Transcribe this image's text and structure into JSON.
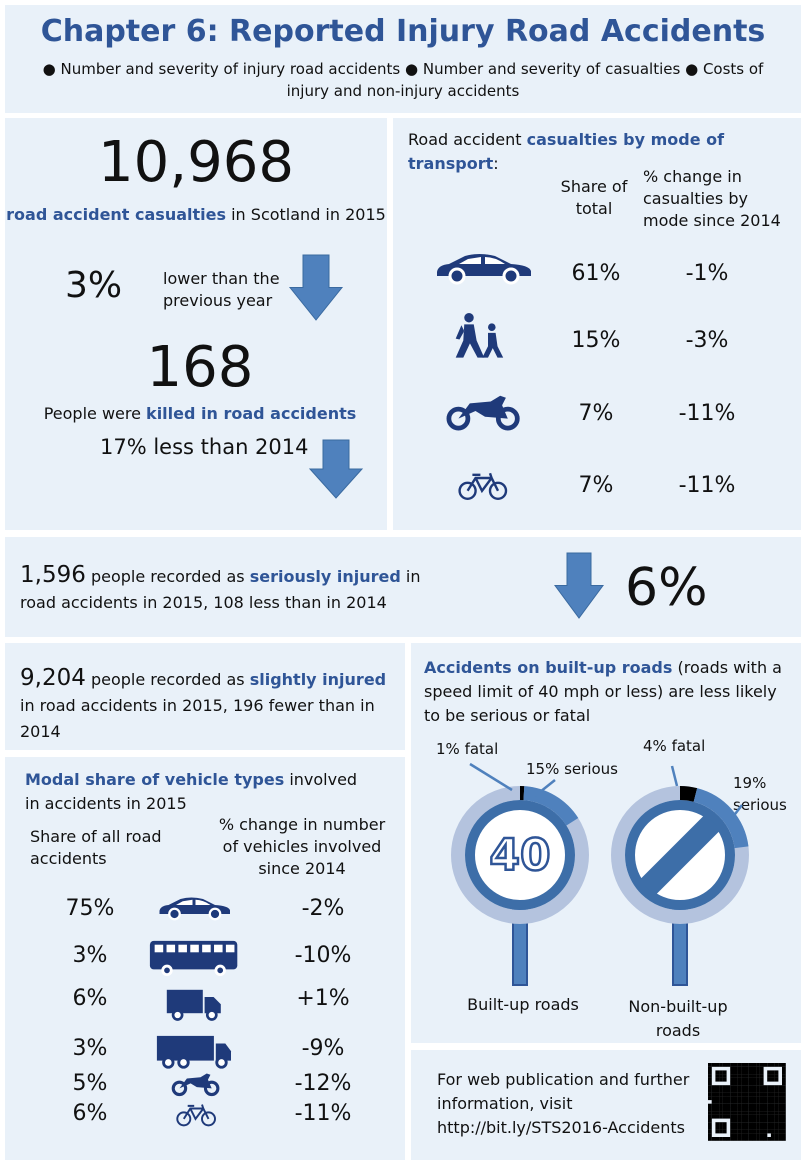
{
  "header": {
    "title": "Chapter 6: Reported Injury Road Accidents",
    "topics": [
      "Number and severity of injury road accidents",
      "Number and severity of casualties",
      "Costs of injury and non-injury accidents"
    ]
  },
  "casualties": {
    "count": "10,968",
    "label_highlight": "road accident casualties",
    "label_rest": "in Scotland in 2015",
    "change": "3%",
    "change_text": "lower than the previous year",
    "killed": "168",
    "killed_pre": "People were",
    "killed_highlight": "killed in road accidents",
    "killed_change": "17% less than 2014"
  },
  "mode": {
    "title_pre": "Road accident",
    "title_highlight": "casualties by mode of transport",
    "title_post": ":",
    "headers": [
      "Share of total",
      "% change in casualties by mode since 2014"
    ],
    "rows": [
      [
        "61%",
        "-1%"
      ],
      [
        "15%",
        "-3%"
      ],
      [
        "7%",
        "-11%"
      ],
      [
        "7%",
        "-11%"
      ]
    ]
  },
  "serious": {
    "count": "1,596",
    "text_pre": "people recorded as",
    "highlight": "seriously injured",
    "text_post": "in road accidents in 2015, 108 less than in 2014",
    "change": "6%"
  },
  "slight": {
    "count": "9,204",
    "text_pre": "people recorded as",
    "highlight": "slightly injured",
    "text_post": "in road accidents in 2015, 196 fewer than in 2014"
  },
  "vehicles": {
    "title_highlight": "Modal share of vehicle types",
    "title_rest": "involved in accidents in 2015",
    "headers": [
      "Share of all road accidents",
      "% change in number of vehicles involved since 2014"
    ],
    "rows": [
      [
        "75%",
        "-2%"
      ],
      [
        "3%",
        "-10%"
      ],
      [
        "6%",
        "+1%"
      ],
      [
        "3%",
        "-9%"
      ],
      [
        "5%",
        "-12%"
      ],
      [
        "6%",
        "-11%"
      ]
    ]
  },
  "roads": {
    "title_highlight": "Accidents on built-up roads",
    "title_rest": "(roads with a speed limit of 40 mph or less) are less likely to be serious or fatal",
    "signs": [
      {
        "label": "Built-up roads",
        "fatal": {
          "value": 1,
          "label": "1% fatal"
        },
        "serious": {
          "value": 15,
          "label": "15% serious"
        },
        "limit": "40"
      },
      {
        "label": "Non-built-up roads",
        "fatal": {
          "value": 4,
          "label": "4% fatal"
        },
        "serious": {
          "value": 19,
          "label": "19% serious"
        }
      }
    ]
  },
  "footer": {
    "text": "For web publication and further information, visit",
    "url": "http://bit.ly/STS2016-Accidents"
  }
}
